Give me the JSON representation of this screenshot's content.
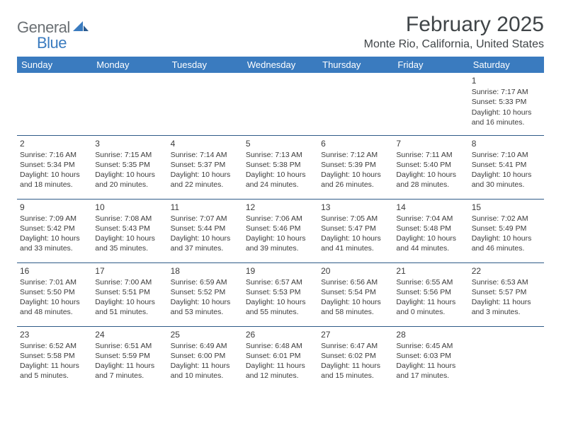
{
  "logo": {
    "word1": "General",
    "word2": "Blue"
  },
  "title": "February 2025",
  "location": "Monte Rio, California, United States",
  "colors": {
    "header_bg": "#3a7bbf",
    "header_text": "#ffffff",
    "rule": "#2f5b88",
    "text": "#3b3b3b",
    "title_text": "#404548",
    "logo_gray": "#6b7074",
    "logo_blue": "#3a7bbf"
  },
  "weekdays": [
    "Sunday",
    "Monday",
    "Tuesday",
    "Wednesday",
    "Thursday",
    "Friday",
    "Saturday"
  ],
  "weeks": [
    [
      null,
      null,
      null,
      null,
      null,
      null,
      {
        "n": "1",
        "sr": "Sunrise: 7:17 AM",
        "ss": "Sunset: 5:33 PM",
        "dl": "Daylight: 10 hours and 16 minutes."
      }
    ],
    [
      {
        "n": "2",
        "sr": "Sunrise: 7:16 AM",
        "ss": "Sunset: 5:34 PM",
        "dl": "Daylight: 10 hours and 18 minutes."
      },
      {
        "n": "3",
        "sr": "Sunrise: 7:15 AM",
        "ss": "Sunset: 5:35 PM",
        "dl": "Daylight: 10 hours and 20 minutes."
      },
      {
        "n": "4",
        "sr": "Sunrise: 7:14 AM",
        "ss": "Sunset: 5:37 PM",
        "dl": "Daylight: 10 hours and 22 minutes."
      },
      {
        "n": "5",
        "sr": "Sunrise: 7:13 AM",
        "ss": "Sunset: 5:38 PM",
        "dl": "Daylight: 10 hours and 24 minutes."
      },
      {
        "n": "6",
        "sr": "Sunrise: 7:12 AM",
        "ss": "Sunset: 5:39 PM",
        "dl": "Daylight: 10 hours and 26 minutes."
      },
      {
        "n": "7",
        "sr": "Sunrise: 7:11 AM",
        "ss": "Sunset: 5:40 PM",
        "dl": "Daylight: 10 hours and 28 minutes."
      },
      {
        "n": "8",
        "sr": "Sunrise: 7:10 AM",
        "ss": "Sunset: 5:41 PM",
        "dl": "Daylight: 10 hours and 30 minutes."
      }
    ],
    [
      {
        "n": "9",
        "sr": "Sunrise: 7:09 AM",
        "ss": "Sunset: 5:42 PM",
        "dl": "Daylight: 10 hours and 33 minutes."
      },
      {
        "n": "10",
        "sr": "Sunrise: 7:08 AM",
        "ss": "Sunset: 5:43 PM",
        "dl": "Daylight: 10 hours and 35 minutes."
      },
      {
        "n": "11",
        "sr": "Sunrise: 7:07 AM",
        "ss": "Sunset: 5:44 PM",
        "dl": "Daylight: 10 hours and 37 minutes."
      },
      {
        "n": "12",
        "sr": "Sunrise: 7:06 AM",
        "ss": "Sunset: 5:46 PM",
        "dl": "Daylight: 10 hours and 39 minutes."
      },
      {
        "n": "13",
        "sr": "Sunrise: 7:05 AM",
        "ss": "Sunset: 5:47 PM",
        "dl": "Daylight: 10 hours and 41 minutes."
      },
      {
        "n": "14",
        "sr": "Sunrise: 7:04 AM",
        "ss": "Sunset: 5:48 PM",
        "dl": "Daylight: 10 hours and 44 minutes."
      },
      {
        "n": "15",
        "sr": "Sunrise: 7:02 AM",
        "ss": "Sunset: 5:49 PM",
        "dl": "Daylight: 10 hours and 46 minutes."
      }
    ],
    [
      {
        "n": "16",
        "sr": "Sunrise: 7:01 AM",
        "ss": "Sunset: 5:50 PM",
        "dl": "Daylight: 10 hours and 48 minutes."
      },
      {
        "n": "17",
        "sr": "Sunrise: 7:00 AM",
        "ss": "Sunset: 5:51 PM",
        "dl": "Daylight: 10 hours and 51 minutes."
      },
      {
        "n": "18",
        "sr": "Sunrise: 6:59 AM",
        "ss": "Sunset: 5:52 PM",
        "dl": "Daylight: 10 hours and 53 minutes."
      },
      {
        "n": "19",
        "sr": "Sunrise: 6:57 AM",
        "ss": "Sunset: 5:53 PM",
        "dl": "Daylight: 10 hours and 55 minutes."
      },
      {
        "n": "20",
        "sr": "Sunrise: 6:56 AM",
        "ss": "Sunset: 5:54 PM",
        "dl": "Daylight: 10 hours and 58 minutes."
      },
      {
        "n": "21",
        "sr": "Sunrise: 6:55 AM",
        "ss": "Sunset: 5:56 PM",
        "dl": "Daylight: 11 hours and 0 minutes."
      },
      {
        "n": "22",
        "sr": "Sunrise: 6:53 AM",
        "ss": "Sunset: 5:57 PM",
        "dl": "Daylight: 11 hours and 3 minutes."
      }
    ],
    [
      {
        "n": "23",
        "sr": "Sunrise: 6:52 AM",
        "ss": "Sunset: 5:58 PM",
        "dl": "Daylight: 11 hours and 5 minutes."
      },
      {
        "n": "24",
        "sr": "Sunrise: 6:51 AM",
        "ss": "Sunset: 5:59 PM",
        "dl": "Daylight: 11 hours and 7 minutes."
      },
      {
        "n": "25",
        "sr": "Sunrise: 6:49 AM",
        "ss": "Sunset: 6:00 PM",
        "dl": "Daylight: 11 hours and 10 minutes."
      },
      {
        "n": "26",
        "sr": "Sunrise: 6:48 AM",
        "ss": "Sunset: 6:01 PM",
        "dl": "Daylight: 11 hours and 12 minutes."
      },
      {
        "n": "27",
        "sr": "Sunrise: 6:47 AM",
        "ss": "Sunset: 6:02 PM",
        "dl": "Daylight: 11 hours and 15 minutes."
      },
      {
        "n": "28",
        "sr": "Sunrise: 6:45 AM",
        "ss": "Sunset: 6:03 PM",
        "dl": "Daylight: 11 hours and 17 minutes."
      },
      null
    ]
  ]
}
